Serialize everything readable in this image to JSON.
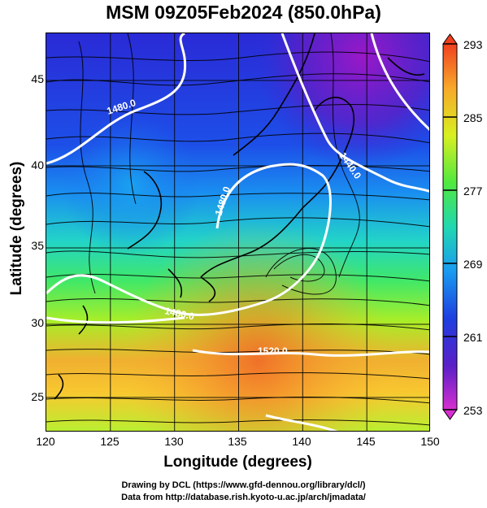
{
  "title": "MSM 09Z05Feb2024 (850.0hPa)",
  "map": {
    "xlabel": "Longitude (degrees)",
    "ylabel": "Latitude  (degrees)",
    "lon_ticks": [
      "120",
      "125",
      "130",
      "135",
      "140",
      "145",
      "150"
    ],
    "lat_ticks": [
      "45",
      "40",
      "35",
      "30",
      "25"
    ],
    "lon_range": [
      120,
      150
    ],
    "lat_range": [
      22.5,
      48
    ],
    "contour_labels": [
      "1480.0",
      "1480.0",
      "1440.0",
      "1480.0",
      "1480.0",
      "1520.0"
    ],
    "fields": [
      "temperature (shaded)",
      "geopotential height (white contours)",
      "wind (streamlines)"
    ]
  },
  "colorbar": {
    "ticks": [
      "293",
      "285",
      "277",
      "269",
      "261",
      "253"
    ],
    "range": [
      253,
      293
    ],
    "colors": [
      "#d62fd0",
      "#5a1fc8",
      "#1d3fe0",
      "#1a9cf0",
      "#18e0c8",
      "#3ee640",
      "#c8f020",
      "#f8a82a",
      "#f04020"
    ]
  },
  "footer": {
    "line1": "Drawing by DCL (https://www.gfd-dennou.org/library/dcl/)",
    "line2": "Data from http://database.rish.kyoto-u.ac.jp/arch/jmadata/"
  }
}
